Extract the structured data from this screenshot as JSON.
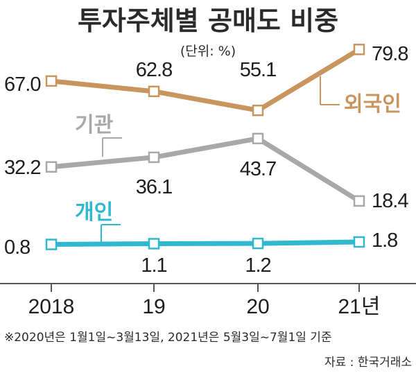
{
  "title": "투자주체별 공매도 비중",
  "unit_label": "(단위: %)",
  "note": "※2020년은 1월1일~3월13일, 2021년은 5월3일~7월1일 기준",
  "source": "자료 : 한국거래소",
  "chart_data": {
    "type": "line",
    "title": "투자주체별 공매도 비중",
    "unit": "%",
    "categories": [
      "2018",
      "19",
      "20",
      "21년"
    ],
    "ylim": [
      0,
      90
    ],
    "grid": false,
    "legend": "inline labels",
    "series": [
      {
        "name": "외국인",
        "color": "#c9955e",
        "values": [
          67.0,
          62.8,
          55.1,
          79.8
        ],
        "labels": [
          "67.0",
          "62.8",
          "55.1",
          "79.8"
        ]
      },
      {
        "name": "기관",
        "color": "#a8a8aa",
        "values": [
          32.2,
          36.1,
          43.7,
          18.4
        ],
        "labels": [
          "32.2",
          "36.1",
          "43.7",
          "18.4"
        ]
      },
      {
        "name": "개인",
        "color": "#2fb8d0",
        "values": [
          0.8,
          1.1,
          1.2,
          1.8
        ],
        "labels": [
          "0.8",
          "1.1",
          "1.2",
          "1.8"
        ]
      }
    ]
  }
}
